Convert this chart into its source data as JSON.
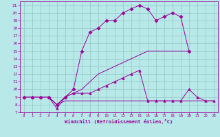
{
  "title": "",
  "xlabel": "Windchill (Refroidissement éolien,°C)",
  "bg_color": "#b8e8e8",
  "line_color": "#990099",
  "xlim": [
    -0.5,
    23.5
  ],
  "ylim": [
    7,
    21.5
  ],
  "xticks": [
    0,
    1,
    2,
    3,
    4,
    5,
    6,
    7,
    8,
    9,
    10,
    11,
    12,
    13,
    14,
    15,
    16,
    17,
    18,
    19,
    20,
    21,
    22,
    23
  ],
  "yticks": [
    7,
    8,
    9,
    10,
    11,
    12,
    13,
    14,
    15,
    16,
    17,
    18,
    19,
    20,
    21
  ],
  "grid_color": "#90c8c8",
  "series": [
    {
      "x": [
        0,
        1,
        2,
        3,
        4,
        5,
        6,
        7,
        8,
        9,
        10,
        11,
        12,
        13,
        14,
        15,
        16,
        17,
        18,
        19,
        20
      ],
      "y": [
        9,
        9,
        9,
        9,
        8,
        9,
        10,
        15,
        17.5,
        18,
        19,
        19,
        20,
        20.5,
        21,
        20.5,
        19,
        19.5,
        20,
        19.5,
        15
      ],
      "marker": "D",
      "markersize": 2.5
    },
    {
      "x": [
        0,
        1,
        2,
        3,
        4,
        5,
        6,
        7,
        8,
        9,
        10,
        11,
        12,
        13,
        14,
        15,
        16,
        17,
        18,
        19,
        20,
        21,
        22,
        23
      ],
      "y": [
        9,
        9,
        9,
        9,
        7.5,
        9,
        9.5,
        9.5,
        9.5,
        10,
        10.5,
        11,
        11.5,
        12,
        12.5,
        8.5,
        8.5,
        8.5,
        8.5,
        8.5,
        10,
        9,
        8.5,
        8.5
      ],
      "marker": "^",
      "markersize": 2.5
    },
    {
      "x": [
        0,
        1,
        2,
        3,
        4,
        5,
        6,
        7,
        8,
        9,
        10,
        11,
        12,
        13,
        14,
        15,
        16,
        17,
        18,
        19,
        20,
        21,
        22,
        23
      ],
      "y": [
        9,
        9,
        9,
        9,
        8,
        8.5,
        8.5,
        8.5,
        8.5,
        8.5,
        8.5,
        8.5,
        8.5,
        8.5,
        8.5,
        8.5,
        8.5,
        8.5,
        8.5,
        8.5,
        8.5,
        8.5,
        8.5,
        8.5
      ],
      "marker": null,
      "markersize": 0
    },
    {
      "x": [
        0,
        1,
        2,
        3,
        4,
        5,
        6,
        7,
        8,
        9,
        10,
        11,
        12,
        13,
        14,
        15,
        16,
        17,
        18,
        19,
        20
      ],
      "y": [
        9,
        9,
        9,
        9,
        8,
        9,
        9.5,
        10,
        11,
        12,
        12.5,
        13,
        13.5,
        14,
        14.5,
        15,
        15,
        15,
        15,
        15,
        15
      ],
      "marker": null,
      "markersize": 0
    }
  ]
}
